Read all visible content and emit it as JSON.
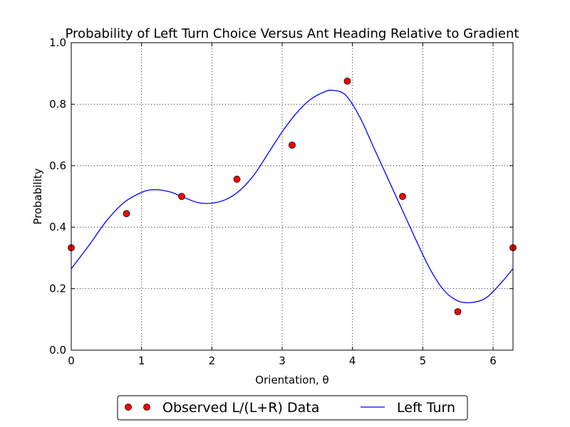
{
  "chart_data": {
    "type": "line",
    "title": "Probability of Left Turn Choice Versus Ant Heading Relative to Gradient",
    "xlabel": "Orientation, θ",
    "ylabel": "Probability",
    "xlim": [
      0,
      6.2832
    ],
    "ylim": [
      0,
      1.0
    ],
    "xticks": [
      "0",
      "1",
      "2",
      "3",
      "4",
      "5",
      "6"
    ],
    "yticks": [
      "0.0",
      "0.2",
      "0.4",
      "0.6",
      "0.8",
      "1.0"
    ],
    "grid": true,
    "legend_position": "bottom-outside",
    "series": [
      {
        "name": "Observed L/(L+R) Data",
        "kind": "scatter",
        "color": "#ff0000",
        "x": [
          0,
          0.7854,
          1.5708,
          2.3562,
          3.1416,
          3.927,
          4.7124,
          5.4978,
          6.2832
        ],
        "y": [
          0.333,
          0.444,
          0.5,
          0.556,
          0.667,
          0.875,
          0.5,
          0.125,
          0.333
        ]
      },
      {
        "name": "Left Turn",
        "kind": "line",
        "color": "#0000ff",
        "x": [
          0,
          0.25,
          0.5,
          0.75,
          1.0,
          1.18,
          1.4,
          1.6,
          1.8,
          2.0,
          2.2,
          2.4,
          2.6,
          2.8,
          3.0,
          3.2,
          3.4,
          3.6,
          3.72,
          3.9,
          4.1,
          4.3,
          4.5,
          4.7,
          4.9,
          5.1,
          5.3,
          5.5,
          5.7,
          5.9,
          6.1,
          6.2832
        ],
        "y": [
          0.265,
          0.34,
          0.42,
          0.48,
          0.513,
          0.522,
          0.515,
          0.497,
          0.48,
          0.478,
          0.49,
          0.52,
          0.57,
          0.64,
          0.71,
          0.77,
          0.815,
          0.84,
          0.845,
          0.83,
          0.76,
          0.66,
          0.56,
          0.46,
          0.36,
          0.265,
          0.195,
          0.16,
          0.155,
          0.17,
          0.215,
          0.265
        ]
      }
    ]
  }
}
